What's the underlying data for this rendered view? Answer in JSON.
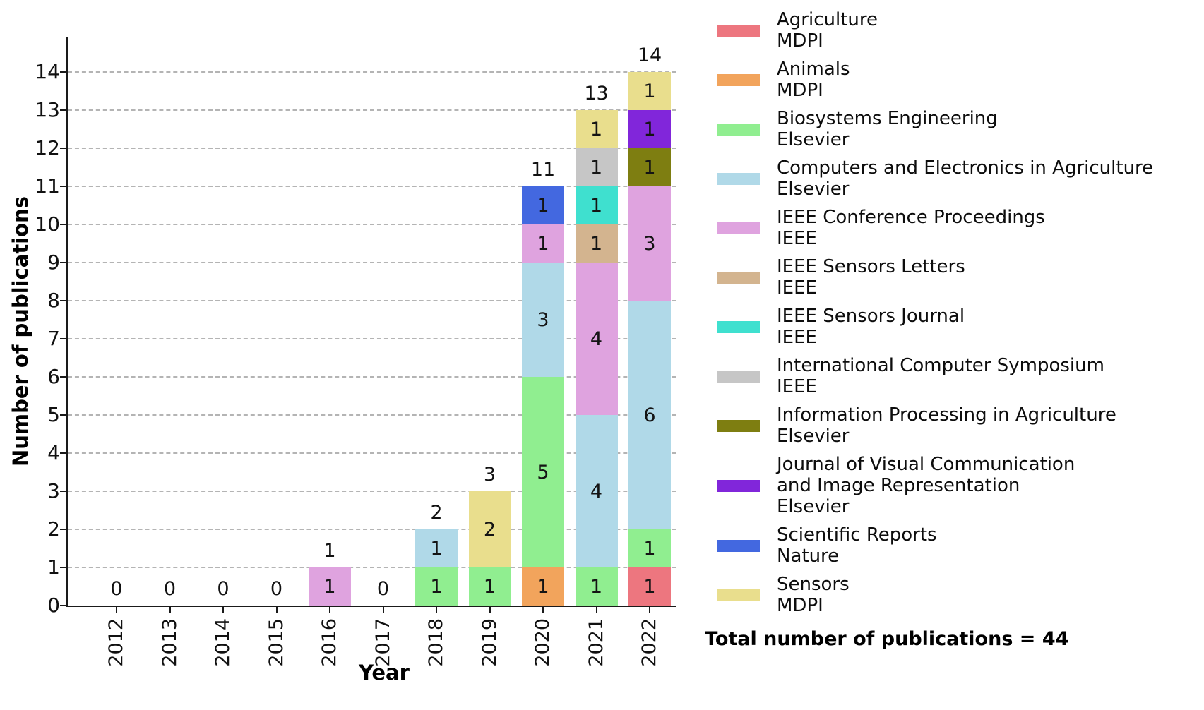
{
  "chart_data": {
    "type": "bar",
    "stacked": true,
    "title": "",
    "xlabel": "Year",
    "ylabel": "Number of publications",
    "ylim": [
      0,
      14
    ],
    "yticks": [
      0,
      1,
      2,
      3,
      4,
      5,
      6,
      7,
      8,
      9,
      10,
      11,
      12,
      13,
      14
    ],
    "grid": "horizontal-dashed",
    "legend_position": "right",
    "categories": [
      "2012",
      "2013",
      "2014",
      "2015",
      "2016",
      "2017",
      "2018",
      "2019",
      "2020",
      "2021",
      "2022"
    ],
    "totals": [
      0,
      0,
      0,
      0,
      1,
      0,
      2,
      3,
      11,
      13,
      14
    ],
    "series": [
      {
        "name": "Agriculture",
        "name_lines": [
          "Agriculture"
        ],
        "publisher": "MDPI",
        "color": "#ed767f",
        "values": [
          0,
          0,
          0,
          0,
          0,
          0,
          0,
          0,
          0,
          0,
          1
        ]
      },
      {
        "name": "Animals",
        "name_lines": [
          "Animals"
        ],
        "publisher": "MDPI",
        "color": "#f2a45c",
        "values": [
          0,
          0,
          0,
          0,
          0,
          0,
          0,
          0,
          1,
          0,
          0
        ]
      },
      {
        "name": "Biosystems Engineering",
        "name_lines": [
          "Biosystems Engineering"
        ],
        "publisher": "Elsevier",
        "color": "#90ee90",
        "values": [
          0,
          0,
          0,
          0,
          0,
          0,
          1,
          1,
          5,
          1,
          1
        ]
      },
      {
        "name": "Computers and Electronics in Agriculture",
        "name_lines": [
          "Computers and Electronics in Agriculture"
        ],
        "publisher": "Elsevier",
        "color": "#b0d9e8",
        "values": [
          0,
          0,
          0,
          0,
          0,
          0,
          1,
          0,
          3,
          4,
          6
        ]
      },
      {
        "name": "IEEE Conference Proceedings",
        "name_lines": [
          "IEEE Conference Proceedings"
        ],
        "publisher": "IEEE",
        "color": "#dfa3df",
        "values": [
          0,
          0,
          0,
          0,
          1,
          0,
          0,
          0,
          1,
          4,
          3
        ]
      },
      {
        "name": "IEEE Sensors Letters",
        "name_lines": [
          "IEEE Sensors Letters"
        ],
        "publisher": "IEEE",
        "color": "#d3b48f",
        "values": [
          0,
          0,
          0,
          0,
          0,
          0,
          0,
          0,
          0,
          1,
          0
        ]
      },
      {
        "name": "IEEE Sensors Journal",
        "name_lines": [
          "IEEE Sensors Journal"
        ],
        "publisher": "IEEE",
        "color": "#3fe0cf",
        "values": [
          0,
          0,
          0,
          0,
          0,
          0,
          0,
          0,
          0,
          1,
          0
        ]
      },
      {
        "name": "International Computer Symposium",
        "name_lines": [
          "International Computer Symposium"
        ],
        "publisher": "IEEE",
        "color": "#c6c6c6",
        "values": [
          0,
          0,
          0,
          0,
          0,
          0,
          0,
          0,
          0,
          1,
          0
        ]
      },
      {
        "name": "Information Processing in Agriculture",
        "name_lines": [
          "Information Processing in Agriculture"
        ],
        "publisher": "Elsevier",
        "color": "#7e7e11",
        "values": [
          0,
          0,
          0,
          0,
          0,
          0,
          0,
          0,
          0,
          0,
          1
        ]
      },
      {
        "name": "Journal of Visual Communication and Image Representation",
        "name_lines": [
          "Journal of Visual Communication",
          "and Image Representation"
        ],
        "publisher": "Elsevier",
        "color": "#8126da",
        "values": [
          0,
          0,
          0,
          0,
          0,
          0,
          0,
          0,
          0,
          0,
          1
        ]
      },
      {
        "name": "Scientific Reports",
        "name_lines": [
          "Scientific Reports"
        ],
        "publisher": "Nature",
        "color": "#4368e0",
        "values": [
          0,
          0,
          0,
          0,
          0,
          0,
          0,
          0,
          1,
          0,
          0
        ]
      },
      {
        "name": "Sensors",
        "name_lines": [
          "Sensors"
        ],
        "publisher": "MDPI",
        "color": "#e9de8d",
        "values": [
          0,
          0,
          0,
          0,
          0,
          0,
          0,
          2,
          0,
          1,
          1
        ]
      }
    ],
    "annotation": "Total number of publications = 44",
    "colors": {
      "grid": "#b4b4b4",
      "axis": "#1a1a1a",
      "text": "#000000"
    }
  }
}
